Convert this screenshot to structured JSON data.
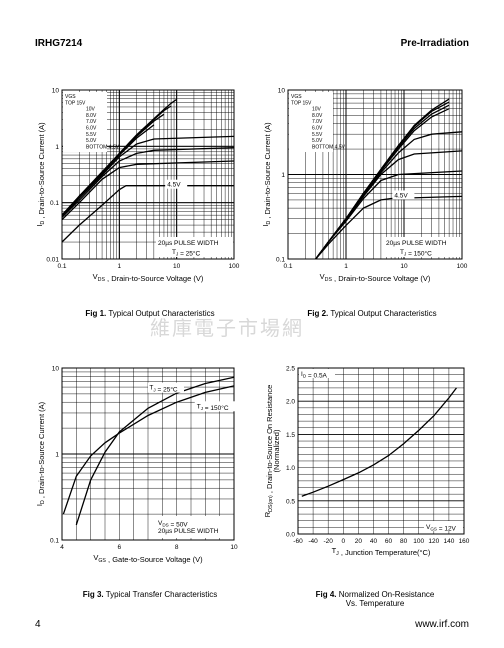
{
  "header": {
    "part_number": "IRHG7214",
    "section": "Pre-Irradiation"
  },
  "footer": {
    "page_number": "4",
    "website": "www.irf.com"
  },
  "watermark": "維庫電子市場網",
  "captions": [
    {
      "fig": "Fig 1.",
      "text": "Typical Output Characteristics"
    },
    {
      "fig": "Fig 2.",
      "text": "Typical Output Characteristics"
    },
    {
      "fig": "Fig 3.",
      "text": "Typical Transfer Characteristics"
    },
    {
      "fig": "Fig 4.",
      "text": "Normalized On-Resistance",
      "text2": "Vs. Temperature"
    }
  ],
  "chart_data": [
    {
      "id": "fig1",
      "type": "line",
      "xscale": "log",
      "yscale": "log",
      "xlim": [
        0.1,
        100
      ],
      "ylim": [
        0.01,
        10
      ],
      "xticks": [
        "0.1",
        "1",
        "10",
        "100"
      ],
      "yticks": [
        "0.01",
        "0.1",
        "1",
        "10"
      ],
      "xlabel": "V_DS , Drain-to-Source Voltage (V)",
      "ylabel": "I_D , Drain-to-Source Current (A)",
      "legend_lines": [
        "VGS",
        "TOP      15V",
        "10V",
        "8.0V",
        "7.0V",
        "6.0V",
        "5.5V",
        "5.0V",
        "BOTTOM 4.5V"
      ],
      "annotations": [
        "4.5V",
        "20µs PULSE WIDTH",
        "T_J = 25°C"
      ],
      "series": [
        {
          "name": "15V",
          "x": [
            0.1,
            0.2,
            0.5,
            1,
            2,
            4,
            6,
            8,
            10
          ],
          "y": [
            0.06,
            0.13,
            0.35,
            0.75,
            1.6,
            3.1,
            4.5,
            5.8,
            6.8
          ]
        },
        {
          "name": "10V",
          "x": [
            0.1,
            0.2,
            0.5,
            1,
            2,
            4,
            6,
            8
          ],
          "y": [
            0.06,
            0.13,
            0.35,
            0.74,
            1.55,
            3.0,
            4.3,
            5.2
          ]
        },
        {
          "name": "8.0V",
          "x": [
            0.1,
            0.2,
            0.5,
            1,
            2,
            4,
            6
          ],
          "y": [
            0.06,
            0.13,
            0.34,
            0.72,
            1.5,
            2.8,
            3.7
          ]
        },
        {
          "name": "7.0V",
          "x": [
            0.1,
            0.2,
            0.5,
            1,
            2,
            4
          ],
          "y": [
            0.06,
            0.12,
            0.33,
            0.7,
            1.4,
            2.4
          ]
        },
        {
          "name": "6.0V",
          "x": [
            0.1,
            0.2,
            0.5,
            1,
            2,
            4,
            100
          ],
          "y": [
            0.055,
            0.12,
            0.31,
            0.65,
            1.1,
            1.35,
            1.5
          ]
        },
        {
          "name": "5.5V",
          "x": [
            0.1,
            0.2,
            0.5,
            1,
            2,
            4,
            100
          ],
          "y": [
            0.055,
            0.11,
            0.29,
            0.55,
            0.75,
            0.85,
            0.95
          ]
        },
        {
          "name": "5.0V",
          "x": [
            0.1,
            0.2,
            0.5,
            1,
            2,
            100
          ],
          "y": [
            0.05,
            0.1,
            0.26,
            0.42,
            0.48,
            0.55
          ]
        },
        {
          "name": "4.5V",
          "x": [
            0.1,
            0.2,
            0.5,
            1,
            1.3,
            100
          ],
          "y": [
            0.02,
            0.04,
            0.09,
            0.17,
            0.2,
            0.2
          ]
        }
      ]
    },
    {
      "id": "fig2",
      "type": "line",
      "xscale": "log",
      "yscale": "log",
      "xlim": [
        0.1,
        100
      ],
      "ylim": [
        0.1,
        10
      ],
      "xticks": [
        "0.1",
        "1",
        "10",
        "100"
      ],
      "yticks": [
        "0.1",
        "1",
        "10"
      ],
      "xlabel": "V_DS , Drain-to-Source Voltage (V)",
      "ylabel": "I_D , Drain-to-Source Current (A)",
      "legend_lines": [
        "VGS",
        "TOP      15V",
        "10V",
        "8.0V",
        "7.0V",
        "6.0V",
        "5.5V",
        "5.0V",
        "BOTTOM 4.5V"
      ],
      "annotations": [
        "4.5V",
        "20µs PULSE WIDTH",
        "T_J = 150°C"
      ],
      "series": [
        {
          "name": "15V",
          "x": [
            0.3,
            0.5,
            1,
            2,
            4,
            8,
            15,
            30,
            60
          ],
          "y": [
            0.1,
            0.16,
            0.3,
            0.6,
            1.15,
            2.2,
            3.8,
            5.8,
            7.8
          ]
        },
        {
          "name": "10V",
          "x": [
            0.3,
            0.5,
            1,
            2,
            4,
            8,
            15,
            30,
            60
          ],
          "y": [
            0.1,
            0.16,
            0.3,
            0.6,
            1.15,
            2.2,
            3.7,
            5.6,
            7.2
          ]
        },
        {
          "name": "8.0V",
          "x": [
            0.3,
            0.5,
            1,
            2,
            4,
            8,
            15,
            30,
            60
          ],
          "y": [
            0.1,
            0.16,
            0.3,
            0.6,
            1.1,
            2.1,
            3.5,
            5.2,
            6.6
          ]
        },
        {
          "name": "7.0V",
          "x": [
            0.3,
            0.5,
            1,
            2,
            4,
            8,
            15,
            30,
            60
          ],
          "y": [
            0.1,
            0.16,
            0.3,
            0.59,
            1.1,
            2.0,
            3.3,
            4.8,
            6.0
          ]
        },
        {
          "name": "6.0V",
          "x": [
            0.3,
            0.5,
            1,
            2,
            4,
            8,
            15,
            30,
            100
          ],
          "y": [
            0.1,
            0.16,
            0.29,
            0.57,
            1.05,
            1.8,
            2.6,
            3.0,
            3.2
          ]
        },
        {
          "name": "5.5V",
          "x": [
            0.3,
            0.5,
            1,
            2,
            4,
            8,
            15,
            100
          ],
          "y": [
            0.1,
            0.16,
            0.29,
            0.55,
            1.0,
            1.5,
            1.75,
            1.9
          ]
        },
        {
          "name": "5.0V",
          "x": [
            0.3,
            0.5,
            1,
            2,
            4,
            8,
            100
          ],
          "y": [
            0.1,
            0.16,
            0.28,
            0.52,
            0.85,
            1.0,
            1.1
          ]
        },
        {
          "name": "4.5V",
          "x": [
            0.3,
            0.5,
            1,
            2,
            4,
            6,
            100
          ],
          "y": [
            0.1,
            0.15,
            0.25,
            0.4,
            0.5,
            0.52,
            0.55
          ]
        }
      ]
    },
    {
      "id": "fig3",
      "type": "line",
      "xscale": "linear",
      "yscale": "log",
      "xlim": [
        4,
        10
      ],
      "ylim": [
        0.1,
        10
      ],
      "xticks": [
        "4",
        "6",
        "8",
        "10"
      ],
      "yticks": [
        "0.1",
        "1",
        "10"
      ],
      "xlabel": "V_GS , Gate-to-Source Voltage (V)",
      "ylabel": "I_D , Drain-to-Source Current (A)",
      "annotations": [
        "V_DS = 50V",
        "20µs PULSE WIDTH"
      ],
      "series": [
        {
          "name": "T_J = 25°C",
          "x": [
            4.5,
            5,
            5.5,
            6,
            7,
            8,
            9,
            10
          ],
          "y": [
            0.15,
            0.5,
            1.05,
            1.8,
            3.4,
            5.1,
            6.6,
            7.8
          ]
        },
        {
          "name": "T_J = 150°C",
          "x": [
            4.05,
            4.5,
            5,
            5.5,
            6,
            7,
            8,
            9,
            10
          ],
          "y": [
            0.2,
            0.55,
            0.95,
            1.35,
            1.75,
            2.8,
            4.0,
            5.2,
            6.2
          ]
        }
      ]
    },
    {
      "id": "fig4",
      "type": "line",
      "xscale": "linear",
      "yscale": "linear",
      "xlim": [
        -60,
        160
      ],
      "ylim": [
        0,
        2.5
      ],
      "xticks": [
        "-60",
        "-40",
        "-20",
        "0",
        "20",
        "40",
        "60",
        "80",
        "100",
        "120",
        "140",
        "160"
      ],
      "yticks": [
        "0.0",
        "0.5",
        "1.0",
        "1.5",
        "2.0",
        "2.5"
      ],
      "xlabel": "T_J , Junction Temperature(°C)",
      "ylabel": "R_DS(on) , Drain-to-Source On Resistance (Normalized)",
      "annotations": [
        "I_D = 0.5A",
        "V_GS = 12V"
      ],
      "series": [
        {
          "name": "",
          "x": [
            -55,
            -40,
            -20,
            0,
            20,
            40,
            60,
            80,
            100,
            120,
            140,
            150
          ],
          "y": [
            0.57,
            0.63,
            0.72,
            0.82,
            0.92,
            1.04,
            1.18,
            1.36,
            1.56,
            1.78,
            2.05,
            2.2
          ]
        }
      ]
    }
  ]
}
